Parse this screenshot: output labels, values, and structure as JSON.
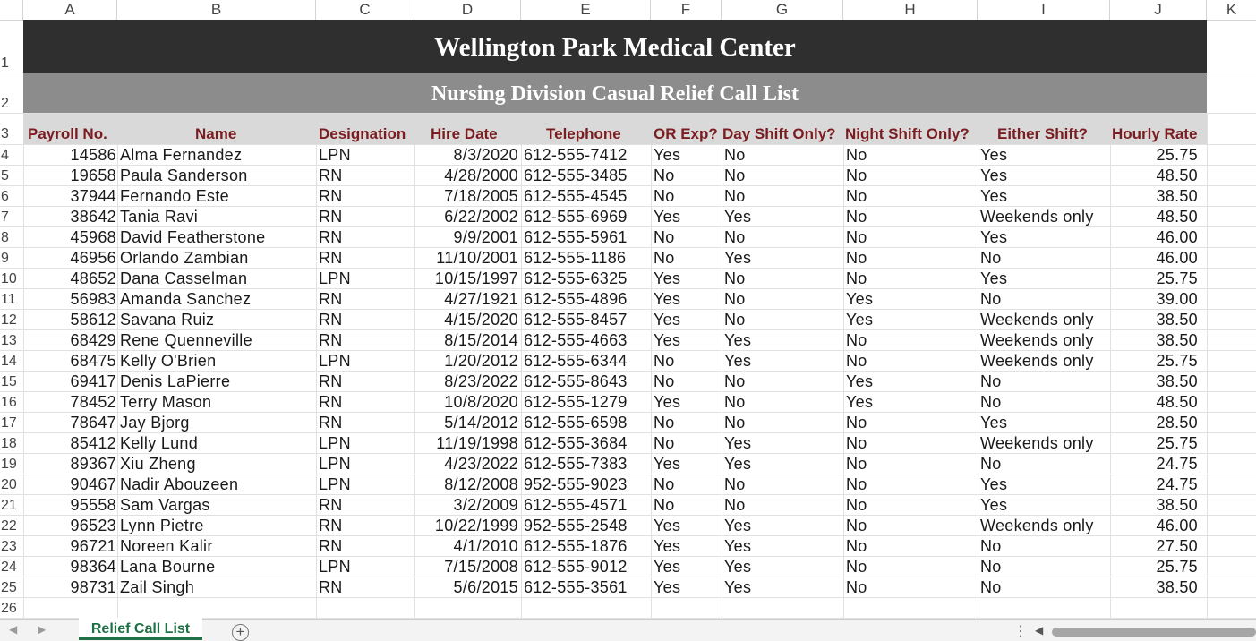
{
  "columns": [
    "A",
    "B",
    "C",
    "D",
    "E",
    "F",
    "G",
    "H",
    "I",
    "J",
    "K"
  ],
  "row_numbers": [
    "1",
    "2",
    "3",
    "4",
    "5",
    "6",
    "7",
    "8",
    "9",
    "10",
    "11",
    "12",
    "13",
    "14",
    "15",
    "16",
    "17",
    "18",
    "19",
    "20",
    "21",
    "22",
    "23",
    "24",
    "25",
    "26"
  ],
  "title": "Wellington Park Medical Center",
  "subtitle": "Nursing Division Casual Relief Call List",
  "headers": [
    "Payroll No.",
    "Name",
    "Designation",
    "Hire Date",
    "Telephone",
    "OR Exp?",
    "Day Shift Only?",
    "Night Shift Only?",
    "Either Shift?",
    "Hourly Rate"
  ],
  "rows": [
    [
      "14586",
      "Alma Fernandez",
      "LPN",
      "8/3/2020",
      "612-555-7412",
      "Yes",
      "No",
      "No",
      "Yes",
      "25.75"
    ],
    [
      "19658",
      "Paula Sanderson",
      "RN",
      "4/28/2000",
      "612-555-3485",
      "No",
      "No",
      "No",
      "Yes",
      "48.50"
    ],
    [
      "37944",
      "Fernando Este",
      "RN",
      "7/18/2005",
      "612-555-4545",
      "No",
      "No",
      "No",
      "Yes",
      "38.50"
    ],
    [
      "38642",
      "Tania Ravi",
      "RN",
      "6/22/2002",
      "612-555-6969",
      "Yes",
      "Yes",
      "No",
      "Weekends only",
      "48.50"
    ],
    [
      "45968",
      "David Featherstone",
      "RN",
      "9/9/2001",
      "612-555-5961",
      "No",
      "No",
      "No",
      "Yes",
      "46.00"
    ],
    [
      "46956",
      "Orlando Zambian",
      "RN",
      "11/10/2001",
      "612-555-1186",
      "No",
      "Yes",
      "No",
      "No",
      "46.00"
    ],
    [
      "48652",
      "Dana Casselman",
      "LPN",
      "10/15/1997",
      "612-555-6325",
      "Yes",
      "No",
      "No",
      "Yes",
      "25.75"
    ],
    [
      "56983",
      "Amanda Sanchez",
      "RN",
      "4/27/1921",
      "612-555-4896",
      "Yes",
      "No",
      "Yes",
      "No",
      "39.00"
    ],
    [
      "58612",
      "Savana Ruiz",
      "RN",
      "4/15/2020",
      "612-555-8457",
      "Yes",
      "No",
      "Yes",
      "Weekends only",
      "38.50"
    ],
    [
      "68429",
      "Rene Quenneville",
      "RN",
      "8/15/2014",
      "612-555-4663",
      "Yes",
      "Yes",
      "No",
      "Weekends only",
      "38.50"
    ],
    [
      "68475",
      "Kelly O'Brien",
      "LPN",
      "1/20/2012",
      "612-555-6344",
      "No",
      "Yes",
      "No",
      "Weekends only",
      "25.75"
    ],
    [
      "69417",
      "Denis LaPierre",
      "RN",
      "8/23/2022",
      "612-555-8643",
      "No",
      "No",
      "Yes",
      "No",
      "38.50"
    ],
    [
      "78452",
      "Terry Mason",
      "RN",
      "10/8/2020",
      "612-555-1279",
      "Yes",
      "No",
      "Yes",
      "No",
      "48.50"
    ],
    [
      "78647",
      "Jay Bjorg",
      "RN",
      "5/14/2012",
      "612-555-6598",
      "No",
      "No",
      "No",
      "Yes",
      "28.50"
    ],
    [
      "85412",
      "Kelly Lund",
      "LPN",
      "11/19/1998",
      "612-555-3684",
      "No",
      "Yes",
      "No",
      "Weekends only",
      "25.75"
    ],
    [
      "89367",
      "Xiu Zheng",
      "LPN",
      "4/23/2022",
      "612-555-7383",
      "Yes",
      "Yes",
      "No",
      "No",
      "24.75"
    ],
    [
      "90467",
      "Nadir Abouzeen",
      "LPN",
      "8/12/2008",
      "952-555-9023",
      "No",
      "No",
      "No",
      "Yes",
      "24.75"
    ],
    [
      "95558",
      "Sam Vargas",
      "RN",
      "3/2/2009",
      "612-555-4571",
      "No",
      "No",
      "No",
      "Yes",
      "38.50"
    ],
    [
      "96523",
      "Lynn Pietre",
      "RN",
      "10/22/1999",
      "952-555-2548",
      "Yes",
      "Yes",
      "No",
      "Weekends only",
      "46.00"
    ],
    [
      "96721",
      "Noreen Kalir",
      "RN",
      "4/1/2010",
      "612-555-1876",
      "Yes",
      "Yes",
      "No",
      "No",
      "27.50"
    ],
    [
      "98364",
      "Lana Bourne",
      "LPN",
      "7/15/2008",
      "612-555-9012",
      "Yes",
      "Yes",
      "No",
      "No",
      "25.75"
    ],
    [
      "98731",
      "Zail Singh",
      "RN",
      "5/6/2015",
      "612-555-3561",
      "Yes",
      "Yes",
      "No",
      "No",
      "38.50"
    ]
  ],
  "sheet_tab": "Relief Call List",
  "add_sheet_symbol": "+",
  "colors": {
    "title_bg": "#2f2f2f",
    "subtitle_bg": "#8c8c8c",
    "header_text": "#7b1c20",
    "tab_accent": "#1e7145"
  },
  "icons": {
    "nav_prev": "chevron-left-icon",
    "nav_next": "chevron-right-icon",
    "add_sheet": "plus-circle-icon"
  }
}
